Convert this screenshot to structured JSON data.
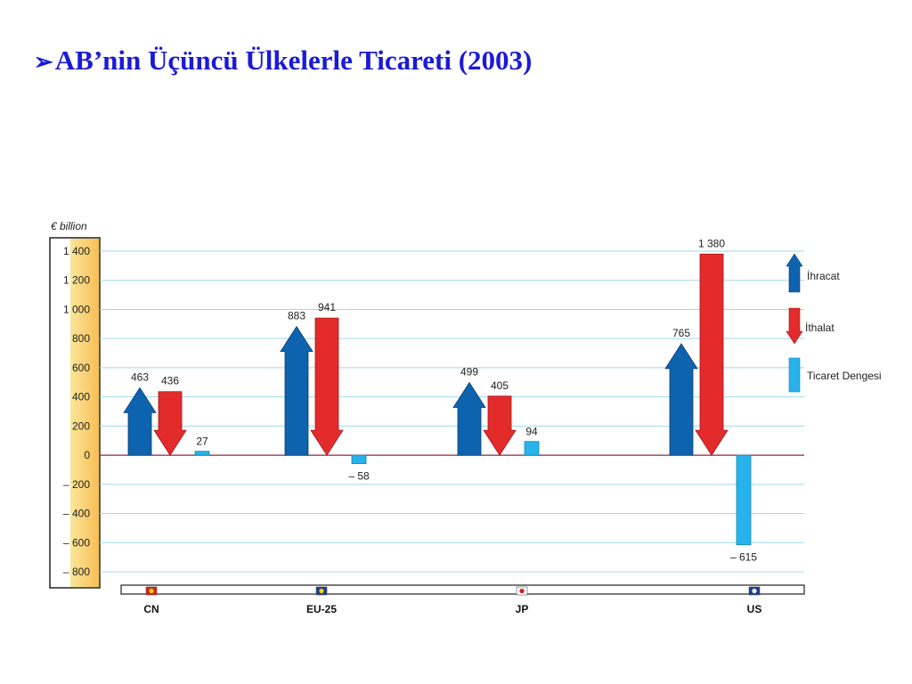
{
  "title": {
    "bullet": "➢",
    "text": "AB’nin Üçüncü Ülkelerle Ticareti (2003)"
  },
  "chart_data": {
    "type": "bar",
    "unit_label": "€ billion",
    "ylim": [
      -800,
      1400
    ],
    "y_ticks": [
      {
        "value": 1400,
        "label": "1 400"
      },
      {
        "value": 1200,
        "label": "1 200"
      },
      {
        "value": 1000,
        "label": "1 000"
      },
      {
        "value": 800,
        "label": "800"
      },
      {
        "value": 600,
        "label": "600"
      },
      {
        "value": 400,
        "label": "400"
      },
      {
        "value": 200,
        "label": "200"
      },
      {
        "value": 0,
        "label": "0"
      },
      {
        "value": -200,
        "label": "– 200"
      },
      {
        "value": -400,
        "label": "– 400"
      },
      {
        "value": -600,
        "label": "– 600"
      },
      {
        "value": -800,
        "label": "– 800"
      }
    ],
    "grid": true,
    "legend_position": "right",
    "categories": [
      "CN",
      "EU-25",
      "JP",
      "US"
    ],
    "series": [
      {
        "name": "İhracat",
        "values": [
          463,
          883,
          499,
          765
        ],
        "labels": [
          "463",
          "883",
          "499",
          "765"
        ],
        "color": "#0d63ad"
      },
      {
        "name": "İthalat",
        "values": [
          436,
          941,
          405,
          1380
        ],
        "labels": [
          "436",
          "941",
          "405",
          "1 380"
        ],
        "color": "#e42b2b"
      },
      {
        "name": "Ticaret Dengesi",
        "values": [
          27,
          -58,
          94,
          -615
        ],
        "labels": [
          "27",
          "– 58",
          "94",
          "– 615"
        ],
        "color": "#27b2ea"
      }
    ]
  }
}
